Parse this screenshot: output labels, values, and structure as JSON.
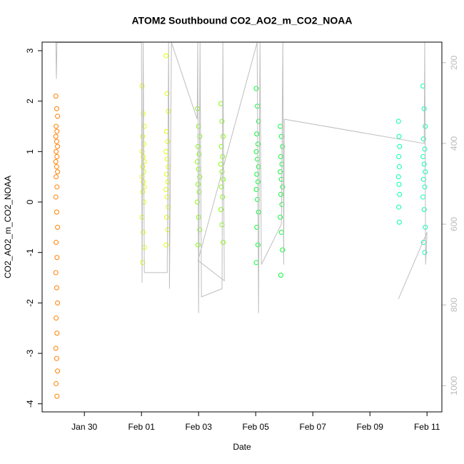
{
  "chart_data": {
    "type": "scatter",
    "title": "ATOM2 Southbound CO2_AO2_m_CO2_NOAA",
    "x_label": "Date",
    "y_label": "CO2_AO2_m_CO2_NOAA",
    "xlim": [
      28.52,
      42.52
    ],
    "xticks": [
      {
        "value": 30,
        "label": "Jan 30"
      },
      {
        "value": 32,
        "label": "Feb 01"
      },
      {
        "value": 34,
        "label": "Feb 03"
      },
      {
        "value": 36,
        "label": "Feb 05"
      },
      {
        "value": 38,
        "label": "Feb 07"
      },
      {
        "value": 40,
        "label": "Feb 09"
      },
      {
        "value": 42,
        "label": "Feb 11"
      }
    ],
    "ylim": [
      -4.16,
      3.17
    ],
    "yticks": [
      -4,
      -3,
      -2,
      -1,
      0,
      1,
      2,
      3
    ],
    "y2lim": [
      1065,
      149
    ],
    "y2ticks": [
      200,
      400,
      600,
      800,
      1000
    ],
    "series": [
      {
        "color": "#FF8000",
        "x": [
          29.0,
          29.03,
          29.06,
          29.01,
          29.04,
          29.0,
          29.03,
          29.06,
          29.01,
          29.04,
          29.0,
          29.03,
          29.06,
          29.01,
          29.04,
          29.0,
          29.03,
          29.06,
          29.01,
          29.04,
          29.0,
          29.03,
          29.06,
          29.01,
          29.04,
          29.0,
          29.03,
          29.06,
          29.01,
          29.04
        ],
        "values": [
          2.1,
          1.85,
          1.7,
          1.5,
          1.4,
          1.3,
          1.2,
          1.1,
          1.0,
          0.9,
          0.8,
          0.7,
          0.6,
          0.5,
          0.3,
          0.1,
          -0.2,
          -0.5,
          -0.8,
          -1.1,
          -1.4,
          -1.7,
          -2.0,
          -2.3,
          -2.6,
          -2.9,
          -3.1,
          -3.35,
          -3.6,
          -3.85
        ]
      },
      {
        "color": "#E5FF00",
        "x": [
          32.02,
          32.06,
          32.1,
          32.04,
          32.08,
          32.02,
          32.06,
          32.1,
          32.04,
          32.08,
          32.02,
          32.06,
          32.1,
          32.04,
          32.08,
          32.02,
          32.06,
          32.1,
          32.04,
          32.86,
          32.9,
          32.94,
          32.88,
          32.92,
          32.86,
          32.9,
          32.94,
          32.88,
          32.92,
          32.86,
          32.9,
          32.94,
          32.88,
          32.92,
          32.86
        ],
        "values": [
          2.3,
          1.75,
          1.5,
          1.3,
          1.15,
          1.0,
          0.9,
          0.8,
          0.7,
          0.6,
          0.5,
          0.4,
          0.3,
          0.2,
          0.0,
          -0.3,
          -0.6,
          -0.9,
          -1.2,
          2.9,
          2.15,
          1.8,
          1.4,
          1.2,
          1.0,
          0.85,
          0.7,
          0.55,
          0.4,
          0.25,
          0.1,
          -0.1,
          -0.3,
          -0.55,
          -0.85
        ]
      },
      {
        "color": "#80FF00",
        "x": [
          33.96,
          34.0,
          34.04,
          33.98,
          34.02,
          33.96,
          34.0,
          34.04,
          33.98,
          34.02,
          33.96,
          34.0,
          34.04,
          33.98,
          34.78,
          34.82,
          34.86,
          34.8,
          34.84,
          34.78,
          34.82,
          34.86,
          34.8,
          34.84,
          34.78,
          34.82,
          34.86
        ],
        "values": [
          1.85,
          1.5,
          1.3,
          1.1,
          0.95,
          0.8,
          0.65,
          0.5,
          0.35,
          0.2,
          0.0,
          -0.3,
          -0.55,
          -0.85,
          1.95,
          1.6,
          1.3,
          1.1,
          0.9,
          0.75,
          0.6,
          0.45,
          0.3,
          0.1,
          -0.15,
          -0.45,
          -0.8
        ]
      },
      {
        "color": "#00FF33",
        "x": [
          36.02,
          36.06,
          36.1,
          36.04,
          36.08,
          36.02,
          36.06,
          36.1,
          36.04,
          36.08,
          36.02,
          36.06,
          36.1,
          36.04,
          36.08,
          36.02,
          36.86,
          36.9,
          36.94,
          36.88,
          36.92,
          36.86,
          36.9,
          36.94,
          36.88,
          36.92,
          36.86,
          36.9,
          36.94,
          36.88
        ],
        "values": [
          2.25,
          1.9,
          1.6,
          1.35,
          1.15,
          1.0,
          0.85,
          0.7,
          0.55,
          0.4,
          0.25,
          0.05,
          -0.2,
          -0.5,
          -0.85,
          -1.2,
          1.5,
          1.3,
          1.1,
          0.9,
          0.75,
          0.6,
          0.45,
          0.3,
          0.15,
          -0.05,
          -0.3,
          -0.6,
          -0.95,
          -1.45
        ]
      },
      {
        "color": "#00FFB2",
        "x": [
          41.0,
          41.02,
          41.04,
          41.01,
          41.03,
          41.0,
          41.02,
          41.04,
          41.01,
          41.03,
          41.86,
          41.9,
          41.94,
          41.88,
          41.92,
          41.86,
          41.9,
          41.94,
          41.88,
          41.92,
          41.86,
          41.9,
          41.94,
          41.88,
          41.92
        ],
        "values": [
          1.6,
          1.3,
          1.1,
          0.9,
          0.7,
          0.5,
          0.35,
          0.15,
          -0.1,
          -0.4,
          2.3,
          1.85,
          1.5,
          1.25,
          1.05,
          0.9,
          0.75,
          0.6,
          0.45,
          0.3,
          0.1,
          -0.15,
          -0.5,
          -0.8,
          -1.0
        ]
      },
      {
        "color": "#BEBEBE",
        "axis": "y2",
        "x": [
          29.0,
          29.02,
          29.04,
          32.0,
          32.02,
          32.06,
          32.1,
          32.9,
          32.95,
          32.98,
          33.05,
          33.95,
          33.97,
          34.0,
          34.05,
          34.1,
          34.82,
          34.85,
          34.9,
          33.98,
          36.05,
          36.1,
          36.15,
          36.2,
          36.9,
          36.95,
          36.98,
          37.0,
          41.9,
          41.92,
          41.95,
          42.0,
          41.0
        ],
        "values": [
          150,
          240,
          150,
          150,
          745,
          150,
          720,
          720,
          150,
          760,
          150,
          340,
          150,
          820,
          150,
          780,
          760,
          150,
          740,
          690,
          150,
          820,
          150,
          700,
          600,
          150,
          700,
          340,
          400,
          150,
          700,
          620,
          785
        ]
      }
    ]
  }
}
